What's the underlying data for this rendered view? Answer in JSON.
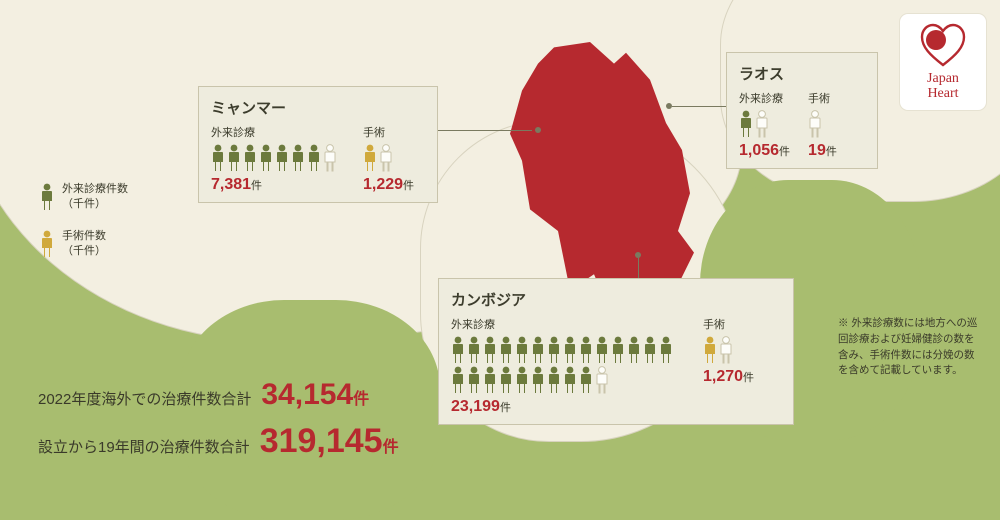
{
  "colors": {
    "bg": "#a8bd6f",
    "land": "#f3efe1",
    "highlight": "#b6292f",
    "panel_bg": "#eeecde",
    "panel_border": "#c9c4ab",
    "icon_green": "#6c7a3d",
    "icon_yellow": "#d0a93c",
    "icon_white": "#fdfdf9",
    "text": "#3a3a2a"
  },
  "logo": {
    "line1": "Japan",
    "line2": "Heart"
  },
  "legend": {
    "outpatient": "外来診療件数\n（千件）",
    "surgery": "手術件数\n（千件）"
  },
  "labels": {
    "outpatient": "外来診療",
    "surgery": "手術",
    "unit": "件"
  },
  "countries": {
    "myanmar": {
      "name": "ミャンマー",
      "outpatient": {
        "value": "7,381",
        "icons": {
          "green": 7,
          "yellow": 0,
          "white": 1
        }
      },
      "surgery": {
        "value": "1,229",
        "icons": {
          "green": 0,
          "yellow": 1,
          "white": 1
        }
      }
    },
    "laos": {
      "name": "ラオス",
      "outpatient": {
        "value": "1,056",
        "icons": {
          "green": 1,
          "yellow": 0,
          "white": 1
        }
      },
      "surgery": {
        "value": "19",
        "icons": {
          "green": 0,
          "yellow": 0,
          "white": 1
        }
      }
    },
    "cambodia": {
      "name": "カンボジア",
      "outpatient": {
        "value": "23,199",
        "icons": {
          "green": 23,
          "yellow": 0,
          "white": 1
        }
      },
      "surgery": {
        "value": "1,270",
        "icons": {
          "green": 0,
          "yellow": 1,
          "white": 1
        }
      }
    }
  },
  "totals": {
    "y2022": {
      "label": "2022年度海外での治療件数合計",
      "value": "34,154",
      "size": 30
    },
    "all": {
      "label": "設立から19年間の治療件数合計",
      "value": "319,145",
      "size": 34
    }
  },
  "note": "※ 外来診療数には地方への巡回診療および妊婦健診の数を含み、手術件数には分娩の数を含めて記載しています。"
}
